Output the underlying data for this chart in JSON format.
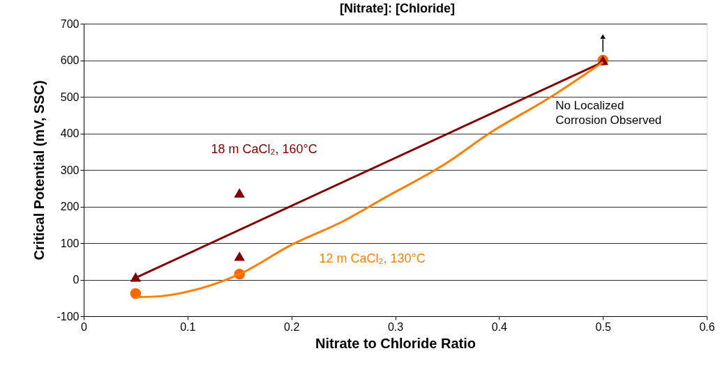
{
  "chart_data": {
    "type": "scatter",
    "title": "[Nitrate]: [Chloride]",
    "xlabel": "Nitrate to Chloride Ratio",
    "ylabel": "Critical Potential (mV, SSC)",
    "series": [
      {
        "marker": "circle",
        "color": "#ff6600",
        "x": [
          0.05,
          0.15,
          0.5
        ],
        "values": [
          -38,
          15,
          600
        ]
      },
      {
        "marker": "triangle",
        "color": "#800000",
        "x": [
          0.05,
          0.15,
          0.15,
          0.5
        ],
        "values": [
          7,
          237,
          64,
          600
        ]
      },
      {
        "type": "line",
        "marker": "none",
        "name": "18 m CaCl₂, 160°C",
        "color": "#800000",
        "x": [
          0.05,
          0.5
        ],
        "values": [
          5,
          595
        ]
      },
      {
        "type": "line",
        "marker": "none",
        "name": "12 m CaCl₂, 130°C",
        "color": "#ff7f00",
        "x": [
          0.05,
          0.075,
          0.1,
          0.15,
          0.2,
          0.25,
          0.29,
          0.35,
          0.39,
          0.45,
          0.5
        ],
        "values": [
          -48,
          -45,
          -33,
          15,
          95,
          160,
          224,
          320,
          399,
          500,
          595
        ]
      }
    ],
    "annotations": [
      "No Localized Corrosion Observed"
    ],
    "xlim": [
      0,
      0.6
    ],
    "xticks": [
      0,
      0.1,
      0.2,
      0.3,
      0.4,
      0.5,
      0.6
    ],
    "ylim": [
      -100,
      700
    ],
    "yticks": [
      -100,
      0,
      100,
      200,
      300,
      400,
      500,
      600,
      700
    ],
    "grid": "y"
  }
}
